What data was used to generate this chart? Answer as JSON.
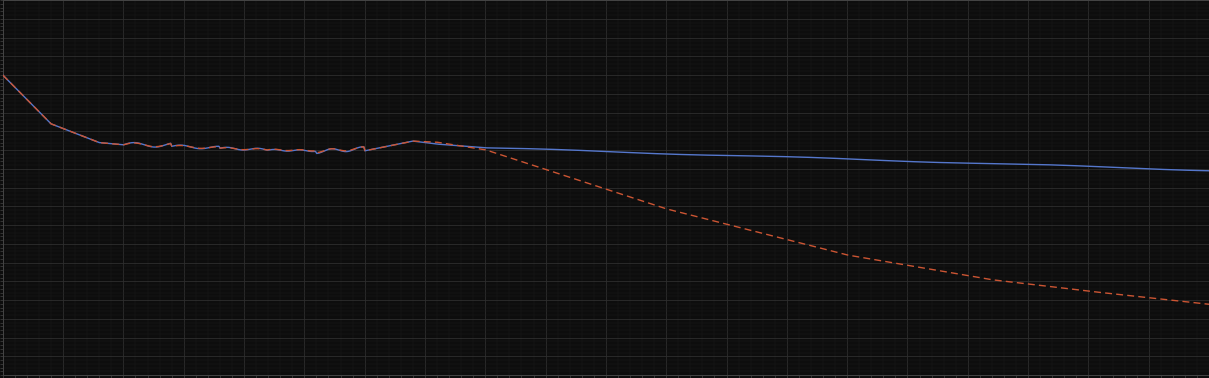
{
  "background_color": "#0d0d0d",
  "plot_bg_color": "#0d0d0d",
  "grid_color": "#2e2e2e",
  "axis_color": "#444444",
  "blue_line_color": "#5577cc",
  "red_line_color": "#cc5533",
  "figsize": [
    12.09,
    3.78
  ],
  "dpi": 100,
  "xlim": [
    0,
    100
  ],
  "ylim": [
    0,
    100
  ]
}
